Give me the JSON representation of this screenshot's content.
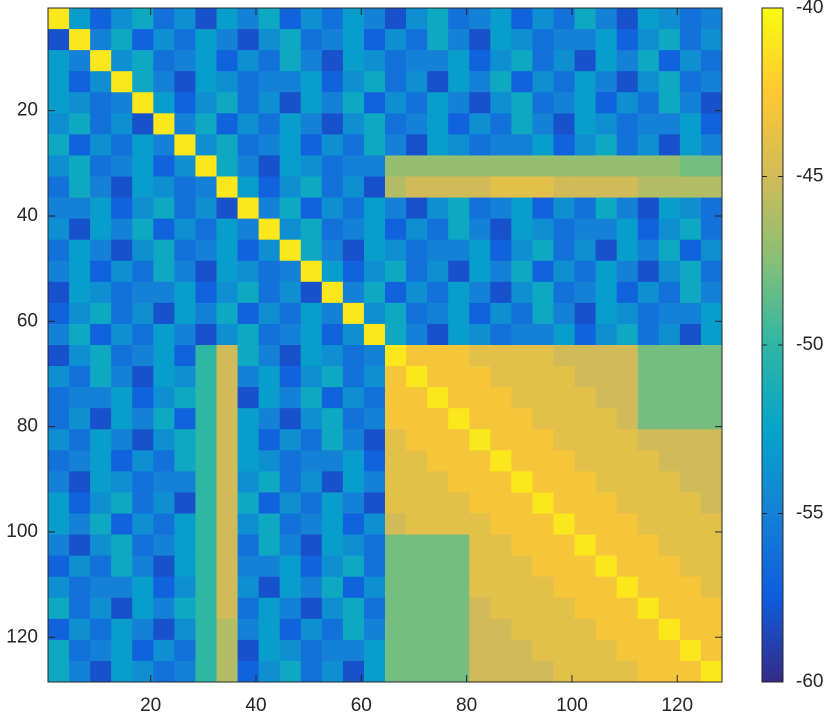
{
  "chart_data": {
    "type": "heatmap",
    "x": [
      2.5,
      6.5,
      10.5,
      14.5,
      18.5,
      22.5,
      26.5,
      30.5,
      34.5,
      38.5,
      42.5,
      46.5,
      50.5,
      54.5,
      58.5,
      62.5,
      66.5,
      70.5,
      74.5,
      78.5,
      82.5,
      86.5,
      90.5,
      94.5,
      98.5,
      102.5,
      106.5,
      110.5,
      114.5,
      118.5,
      122.5,
      126.5
    ],
    "y": [
      2.5,
      6.5,
      10.5,
      14.5,
      18.5,
      22.5,
      26.5,
      30.5,
      34.5,
      38.5,
      42.5,
      46.5,
      50.5,
      54.5,
      58.5,
      62.5,
      66.5,
      70.5,
      74.5,
      78.5,
      82.5,
      86.5,
      90.5,
      94.5,
      98.5,
      102.5,
      106.5,
      110.5,
      114.5,
      118.5,
      122.5,
      126.5
    ],
    "z": [
      [
        -41,
        -53,
        -57,
        -54,
        -52,
        -56,
        -54,
        -58,
        -53,
        -55,
        -52,
        -57,
        -54,
        -56,
        -53,
        -55,
        -58,
        -54,
        -52,
        -56,
        -55,
        -53,
        -57,
        -54,
        -56,
        -52,
        -55,
        -58,
        -53,
        -54,
        -56,
        -55
      ],
      [
        -58,
        -41,
        -55,
        -52,
        -57,
        -54,
        -56,
        -53,
        -55,
        -58,
        -54,
        -52,
        -56,
        -55,
        -53,
        -57,
        -54,
        -56,
        -52,
        -55,
        -58,
        -53,
        -54,
        -56,
        -55,
        -55,
        -53,
        -57,
        -54,
        -52,
        -56,
        -54
      ],
      [
        -53,
        -55,
        -41,
        -54,
        -52,
        -56,
        -55,
        -53,
        -57,
        -54,
        -56,
        -52,
        -55,
        -58,
        -53,
        -54,
        -56,
        -55,
        -55,
        -53,
        -57,
        -54,
        -52,
        -56,
        -54,
        -58,
        -53,
        -55,
        -52,
        -57,
        -54,
        -56
      ],
      [
        -53,
        -57,
        -54,
        -41,
        -52,
        -55,
        -58,
        -53,
        -54,
        -56,
        -55,
        -55,
        -53,
        -57,
        -54,
        -52,
        -56,
        -54,
        -58,
        -53,
        -55,
        -52,
        -57,
        -54,
        -56,
        -53,
        -55,
        -58,
        -54,
        -52,
        -56,
        -55
      ],
      [
        -53,
        -54,
        -56,
        -55,
        -41,
        -53,
        -57,
        -54,
        -52,
        -56,
        -54,
        -58,
        -53,
        -55,
        -52,
        -57,
        -54,
        -56,
        -53,
        -55,
        -58,
        -54,
        -52,
        -56,
        -55,
        -53,
        -57,
        -54,
        -56,
        -52,
        -55,
        -58
      ],
      [
        -54,
        -52,
        -56,
        -54,
        -58,
        -41,
        -55,
        -52,
        -57,
        -54,
        -56,
        -53,
        -55,
        -58,
        -54,
        -52,
        -56,
        -55,
        -53,
        -57,
        -54,
        -56,
        -52,
        -55,
        -58,
        -53,
        -54,
        -56,
        -55,
        -55,
        -53,
        -57
      ],
      [
        -52,
        -57,
        -54,
        -56,
        -53,
        -55,
        -41,
        -54,
        -52,
        -56,
        -55,
        -53,
        -57,
        -54,
        -56,
        -52,
        -55,
        -58,
        -53,
        -54,
        -56,
        -55,
        -55,
        -53,
        -57,
        -54,
        -52,
        -56,
        -54,
        -58,
        -53,
        -55
      ],
      [
        -54,
        -52,
        -56,
        -55,
        -53,
        -57,
        -54,
        -41,
        -52,
        -55,
        -58,
        -53,
        -54,
        -56,
        -55,
        -55,
        -47,
        -47,
        -47,
        -47,
        -47,
        -47,
        -47,
        -47,
        -47,
        -47,
        -47,
        -47,
        -47,
        -47,
        -48,
        -48
      ],
      [
        -56,
        -52,
        -55,
        -58,
        -53,
        -54,
        -56,
        -55,
        -41,
        -53,
        -57,
        -54,
        -52,
        -56,
        -54,
        -58,
        -46,
        -45,
        -45,
        -45,
        -45,
        -44,
        -44,
        -44,
        -45,
        -45,
        -45,
        -45,
        -46,
        -46,
        -46,
        -46
      ],
      [
        -55,
        -55,
        -53,
        -57,
        -54,
        -52,
        -56,
        -54,
        -58,
        -41,
        -55,
        -52,
        -57,
        -54,
        -56,
        -53,
        -55,
        -58,
        -54,
        -52,
        -56,
        -55,
        -53,
        -57,
        -54,
        -56,
        -52,
        -55,
        -58,
        -53,
        -54,
        -56
      ],
      [
        -54,
        -58,
        -53,
        -55,
        -52,
        -57,
        -54,
        -56,
        -53,
        -55,
        -41,
        -54,
        -52,
        -56,
        -55,
        -53,
        -57,
        -54,
        -56,
        -52,
        -55,
        -58,
        -53,
        -54,
        -56,
        -55,
        -55,
        -53,
        -57,
        -54,
        -52,
        -56
      ],
      [
        -56,
        -53,
        -55,
        -58,
        -54,
        -52,
        -56,
        -55,
        -53,
        -57,
        -54,
        -41,
        -52,
        -55,
        -58,
        -53,
        -54,
        -56,
        -55,
        -55,
        -53,
        -57,
        -54,
        -52,
        -56,
        -54,
        -58,
        -53,
        -55,
        -52,
        -57,
        -54
      ],
      [
        -55,
        -53,
        -57,
        -54,
        -56,
        -52,
        -55,
        -58,
        -53,
        -54,
        -56,
        -55,
        -41,
        -53,
        -57,
        -54,
        -52,
        -56,
        -54,
        -58,
        -53,
        -55,
        -52,
        -57,
        -54,
        -56,
        -53,
        -55,
        -58,
        -54,
        -52,
        -56
      ],
      [
        -58,
        -53,
        -54,
        -56,
        -55,
        -55,
        -53,
        -57,
        -54,
        -52,
        -56,
        -54,
        -58,
        -41,
        -55,
        -52,
        -57,
        -54,
        -56,
        -53,
        -55,
        -58,
        -54,
        -52,
        -56,
        -55,
        -53,
        -57,
        -54,
        -56,
        -52,
        -55
      ],
      [
        -57,
        -54,
        -52,
        -56,
        -54,
        -58,
        -53,
        -55,
        -52,
        -57,
        -54,
        -56,
        -53,
        -55,
        -41,
        -54,
        -52,
        -56,
        -55,
        -53,
        -57,
        -54,
        -56,
        -52,
        -55,
        -58,
        -53,
        -54,
        -56,
        -55,
        -55,
        -53
      ],
      [
        -55,
        -52,
        -57,
        -54,
        -56,
        -53,
        -55,
        -58,
        -54,
        -52,
        -56,
        -55,
        -53,
        -57,
        -54,
        -41,
        -52,
        -55,
        -58,
        -53,
        -54,
        -56,
        -55,
        -55,
        -53,
        -57,
        -54,
        -52,
        -56,
        -54,
        -58,
        -53
      ],
      [
        -58,
        -54,
        -52,
        -56,
        -55,
        -53,
        -57,
        -50,
        -45,
        -52,
        -55,
        -58,
        -53,
        -54,
        -56,
        -55,
        -41,
        -43,
        -43,
        -43,
        -44,
        -44,
        -44,
        -44,
        -45,
        -45,
        -45,
        -45,
        -48,
        -48,
        -48,
        -48
      ],
      [
        -54,
        -56,
        -52,
        -55,
        -58,
        -53,
        -54,
        -50,
        -45,
        -55,
        -53,
        -57,
        -54,
        -52,
        -56,
        -54,
        -43,
        -41,
        -43,
        -43,
        -43,
        -44,
        -44,
        -44,
        -44,
        -45,
        -45,
        -45,
        -48,
        -48,
        -48,
        -48
      ],
      [
        -56,
        -55,
        -55,
        -53,
        -57,
        -54,
        -52,
        -50,
        -45,
        -58,
        -53,
        -55,
        -52,
        -57,
        -54,
        -56,
        -43,
        -43,
        -41,
        -43,
        -43,
        -43,
        -44,
        -44,
        -44,
        -44,
        -45,
        -45,
        -48,
        -48,
        -48,
        -48
      ],
      [
        -56,
        -54,
        -58,
        -53,
        -55,
        -52,
        -57,
        -50,
        -45,
        -53,
        -55,
        -58,
        -54,
        -52,
        -56,
        -55,
        -43,
        -43,
        -43,
        -41,
        -43,
        -43,
        -43,
        -44,
        -44,
        -44,
        -44,
        -45,
        -48,
        -48,
        -48,
        -48
      ],
      [
        -54,
        -56,
        -53,
        -55,
        -58,
        -54,
        -52,
        -50,
        -45,
        -53,
        -57,
        -54,
        -56,
        -52,
        -55,
        -58,
        -44,
        -43,
        -43,
        -43,
        -41,
        -43,
        -43,
        -43,
        -44,
        -44,
        -44,
        -44,
        -45,
        -45,
        -45,
        -45
      ],
      [
        -56,
        -55,
        -53,
        -57,
        -54,
        -56,
        -52,
        -50,
        -45,
        -53,
        -54,
        -56,
        -55,
        -55,
        -53,
        -57,
        -44,
        -44,
        -43,
        -43,
        -43,
        -41,
        -43,
        -43,
        -43,
        -44,
        -44,
        -44,
        -44,
        -45,
        -45,
        -45
      ],
      [
        -55,
        -58,
        -53,
        -54,
        -56,
        -55,
        -55,
        -50,
        -45,
        -54,
        -52,
        -56,
        -54,
        -58,
        -53,
        -55,
        -44,
        -44,
        -44,
        -43,
        -43,
        -43,
        -41,
        -43,
        -43,
        -43,
        -44,
        -44,
        -44,
        -44,
        -45,
        -45
      ],
      [
        -53,
        -57,
        -54,
        -52,
        -56,
        -54,
        -58,
        -50,
        -45,
        -52,
        -57,
        -54,
        -56,
        -53,
        -55,
        -58,
        -44,
        -44,
        -44,
        -44,
        -43,
        -43,
        -43,
        -41,
        -43,
        -43,
        -43,
        -44,
        -44,
        -44,
        -44,
        -45
      ],
      [
        -53,
        -55,
        -52,
        -57,
        -54,
        -56,
        -53,
        -50,
        -45,
        -54,
        -52,
        -56,
        -55,
        -53,
        -57,
        -54,
        -45,
        -44,
        -44,
        -44,
        -44,
        -43,
        -43,
        -43,
        -41,
        -43,
        -43,
        -43,
        -44,
        -44,
        -44,
        -44
      ],
      [
        -55,
        -58,
        -54,
        -52,
        -56,
        -55,
        -53,
        -50,
        -45,
        -56,
        -52,
        -55,
        -58,
        -53,
        -54,
        -56,
        -48,
        -48,
        -48,
        -48,
        -44,
        -44,
        -43,
        -43,
        -43,
        -41,
        -43,
        -43,
        -43,
        -44,
        -44,
        -44
      ],
      [
        -57,
        -54,
        -56,
        -52,
        -55,
        -58,
        -53,
        -50,
        -45,
        -55,
        -55,
        -53,
        -57,
        -54,
        -52,
        -56,
        -48,
        -48,
        -48,
        -48,
        -44,
        -44,
        -44,
        -43,
        -43,
        -43,
        -41,
        -43,
        -43,
        -43,
        -44,
        -44
      ],
      [
        -54,
        -56,
        -55,
        -55,
        -53,
        -57,
        -54,
        -50,
        -45,
        -54,
        -58,
        -53,
        -55,
        -52,
        -57,
        -54,
        -48,
        -48,
        -48,
        -48,
        -44,
        -44,
        -44,
        -44,
        -43,
        -43,
        -43,
        -41,
        -43,
        -43,
        -43,
        -44
      ],
      [
        -52,
        -56,
        -54,
        -58,
        -53,
        -55,
        -52,
        -50,
        -45,
        -56,
        -53,
        -55,
        -58,
        -54,
        -52,
        -56,
        -48,
        -48,
        -48,
        -48,
        -45,
        -44,
        -44,
        -44,
        -44,
        -43,
        -43,
        -43,
        -41,
        -43,
        -43,
        -43
      ],
      [
        -57,
        -54,
        -56,
        -53,
        -55,
        -58,
        -54,
        -50,
        -46,
        -55,
        -53,
        -57,
        -54,
        -56,
        -52,
        -55,
        -48,
        -48,
        -48,
        -48,
        -45,
        -45,
        -44,
        -44,
        -44,
        -44,
        -43,
        -43,
        -43,
        -41,
        -43,
        -43
      ],
      [
        -52,
        -56,
        -55,
        -53,
        -57,
        -54,
        -56,
        -50,
        -46,
        -58,
        -53,
        -54,
        -56,
        -55,
        -55,
        -53,
        -48,
        -48,
        -48,
        -48,
        -45,
        -45,
        -45,
        -44,
        -44,
        -44,
        -44,
        -43,
        -43,
        -43,
        -41,
        -43
      ],
      [
        -52,
        -55,
        -58,
        -53,
        -54,
        -56,
        -55,
        -50,
        -46,
        -57,
        -54,
        -52,
        -56,
        -54,
        -58,
        -53,
        -48,
        -48,
        -48,
        -48,
        -45,
        -45,
        -45,
        -45,
        -44,
        -44,
        -44,
        -44,
        -43,
        -43,
        -43,
        -41
      ]
    ],
    "xlim": [
      0.5,
      128.5
    ],
    "ylim": [
      0.5,
      128.5
    ],
    "y_reversed": true,
    "xticks": [
      20,
      40,
      60,
      80,
      100,
      120
    ],
    "yticks": [
      20,
      40,
      60,
      80,
      100,
      120
    ],
    "clim": [
      -60,
      -40
    ],
    "cticks": [
      -60,
      -55,
      -50,
      -45,
      -40
    ],
    "colormap": [
      "#352a87",
      "#0f5cdd",
      "#1481d6",
      "#06a4ca",
      "#2eb7a4",
      "#87bf77",
      "#d1bb59",
      "#fec832",
      "#f9fb0e"
    ]
  }
}
